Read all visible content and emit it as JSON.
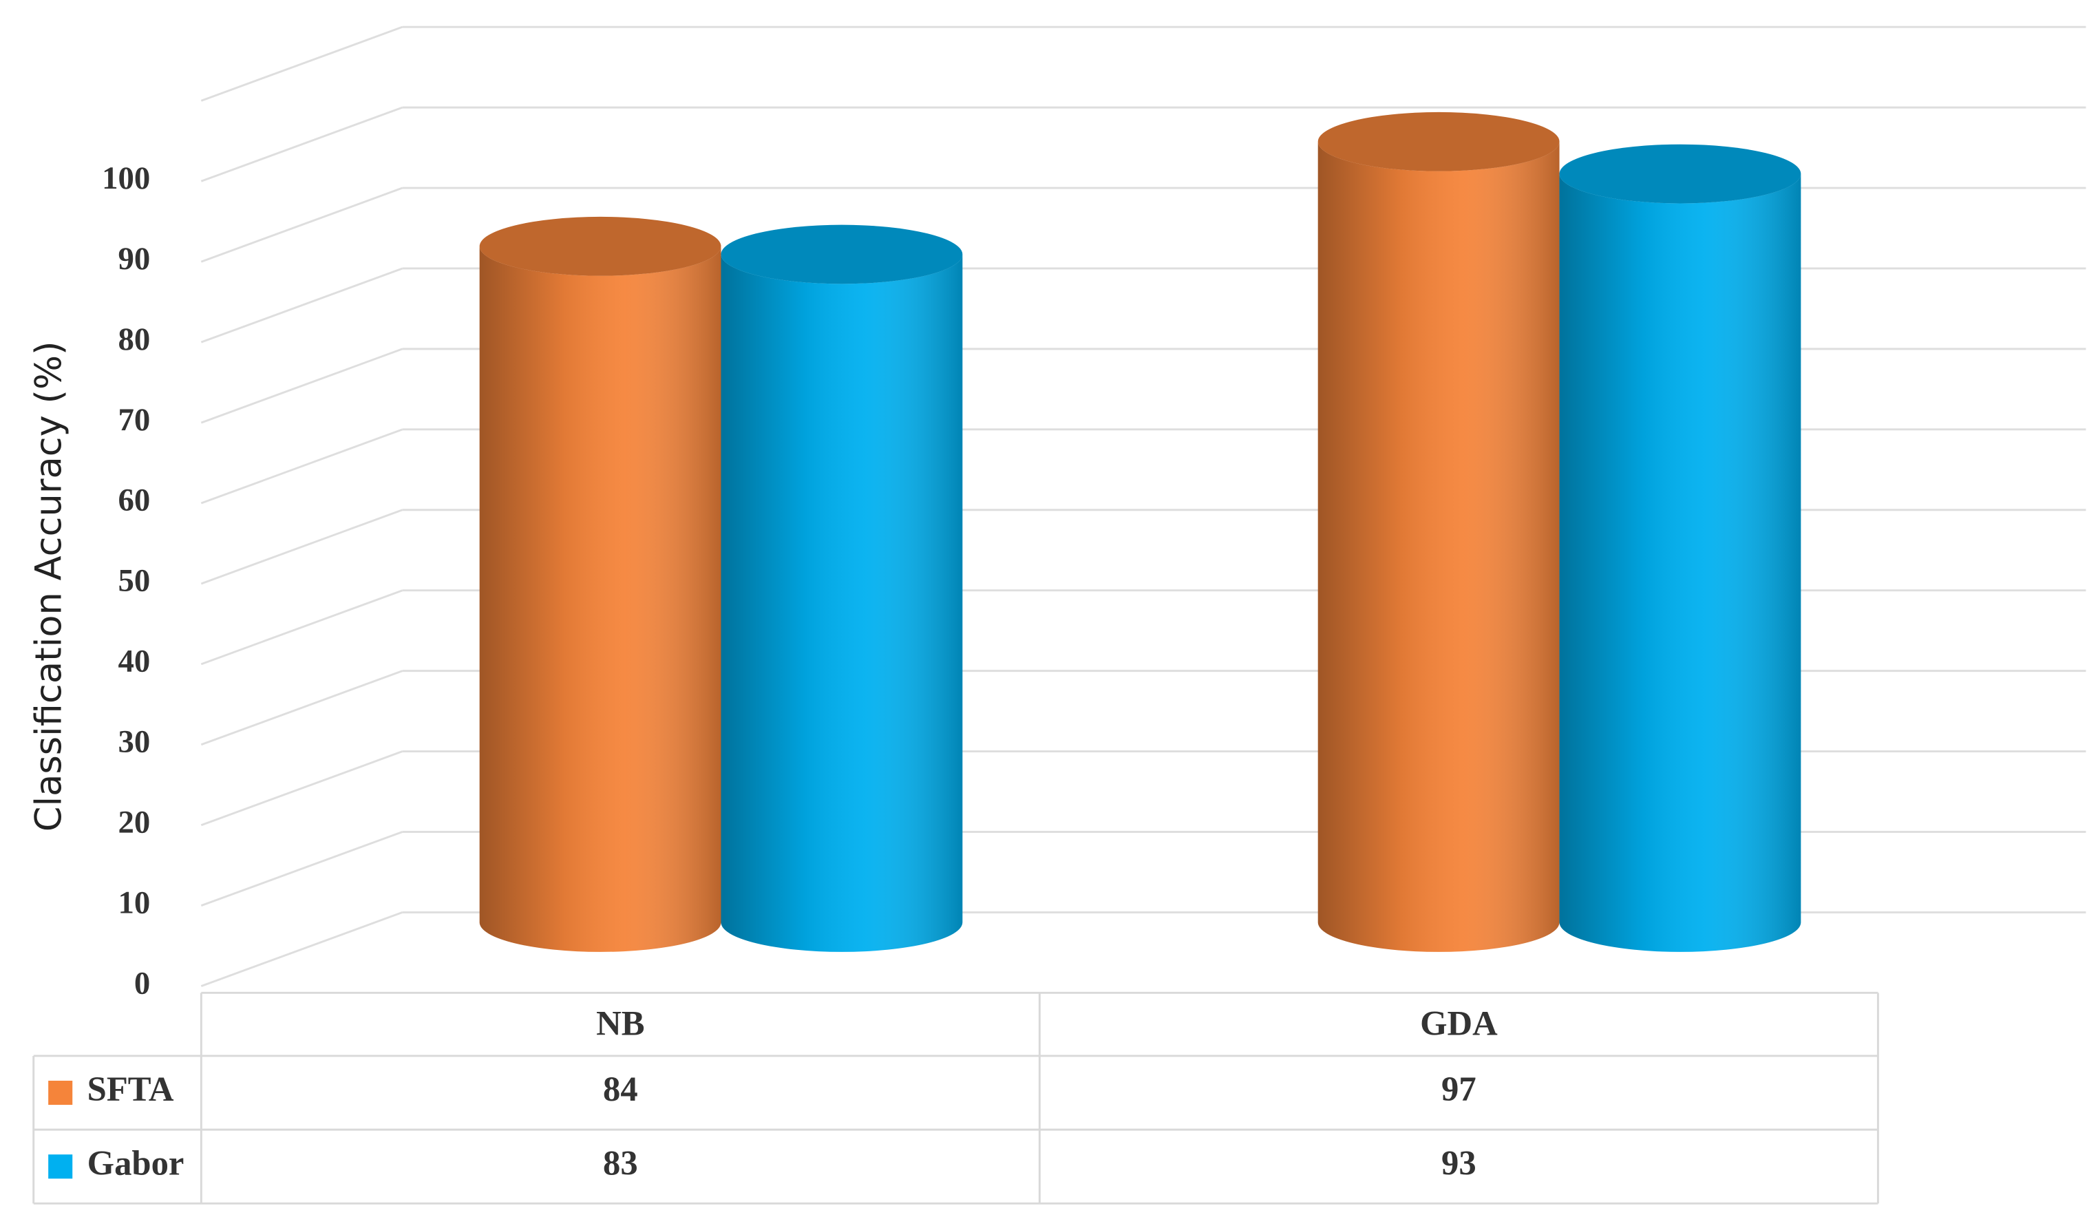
{
  "chart_data": {
    "type": "bar3d",
    "y_label": "Classification Accuracy (%)",
    "categories": [
      "NB",
      "GDA"
    ],
    "series": [
      {
        "name": "SFTA",
        "color": "#f5843a",
        "values": [
          84,
          97
        ]
      },
      {
        "name": "Gabor",
        "color": "#00b0f0",
        "values": [
          83,
          93
        ]
      }
    ],
    "ylim": [
      0,
      110
    ],
    "yticks": [
      0,
      10,
      20,
      30,
      40,
      50,
      60,
      70,
      80,
      90,
      100
    ],
    "grid": true,
    "legend": "table"
  }
}
